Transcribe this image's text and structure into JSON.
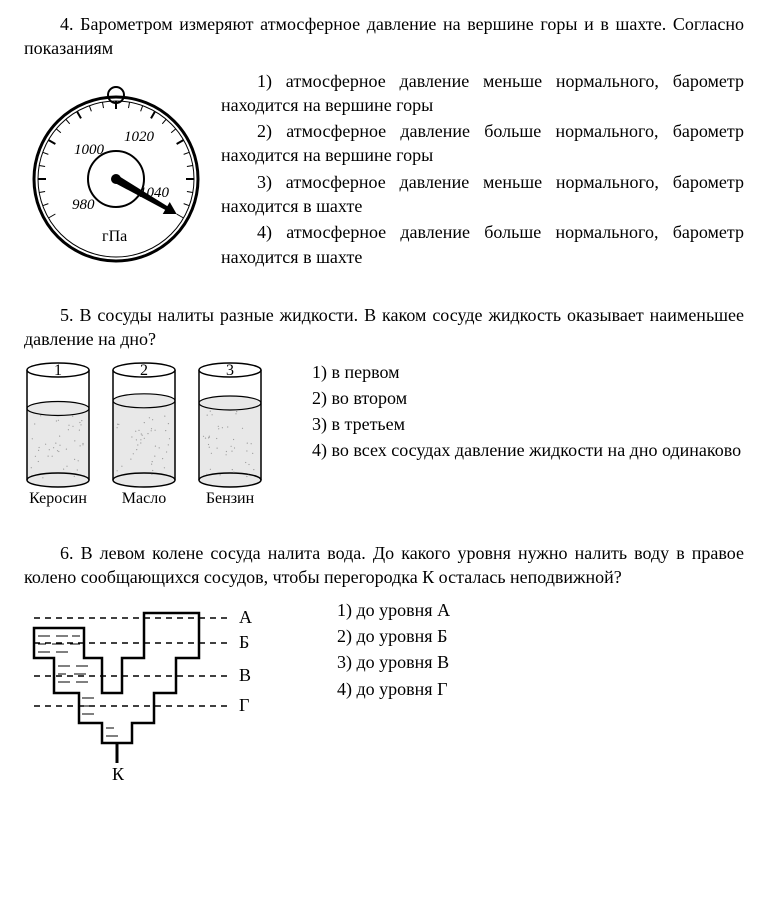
{
  "q4": {
    "num": "4.",
    "text": "Барометром измеряют атмосферное давление на вершине горы и в шахте. Согласно показаниям",
    "options": [
      "1) атмосферное давление меньше нормального, барометр находится на вершине горы",
      "2) атмосферное давление больше нормального, барометр находится на вершине горы",
      "3) атмосферное давление меньше нормального, барометр находится в шахте",
      "4) атмосферное давление больше нормального, барометр находится в шахте"
    ],
    "barometer": {
      "ticks": [
        "980",
        "1000",
        "1020",
        "1040"
      ],
      "unit": "гПа",
      "needle_deg": 30,
      "outer_color": "#000",
      "bg": "#fff"
    }
  },
  "q5": {
    "num": "5.",
    "text": "В сосуды налиты разные жидкости. В каком сосуде жидкость оказывает наименьшее давление на дно?",
    "options": [
      "1) в первом",
      "2) во втором",
      "3) в третьем",
      "4) во всех сосудах давление жидкости на дно одинаково"
    ],
    "cylinders": [
      {
        "label": "Керосин",
        "num": "1",
        "fill": 0.65
      },
      {
        "label": "Масло",
        "num": "2",
        "fill": 0.72
      },
      {
        "label": "Бензин",
        "num": "3",
        "fill": 0.7
      }
    ],
    "cyl_style": {
      "w": 62,
      "h": 110,
      "stroke": "#000",
      "liquid": "#e8e8e8"
    }
  },
  "q6": {
    "num": "6.",
    "text": "В левом колене сосуда налита вода. До какого уровня нужно налить воду в правое колено сообщающихся сосудов, чтобы перегородка К осталась неподвижной?",
    "options": [
      "1) до уровня А",
      "2) до уровня Б",
      "3) до уровня В",
      "4) до уровня Г"
    ],
    "levels": [
      "А",
      "Б",
      "В",
      "Г"
    ],
    "k_label": "К"
  }
}
